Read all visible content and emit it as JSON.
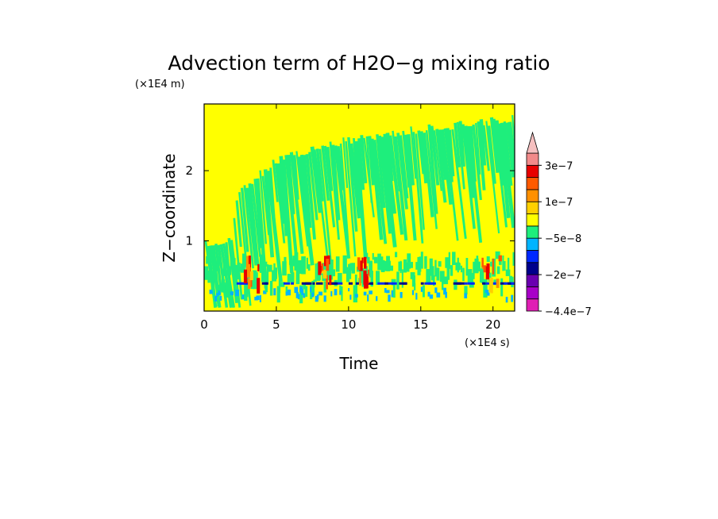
{
  "chart_data": {
    "type": "heatmap",
    "title": "Advection term of H2O−g mixing ratio",
    "xlabel": "Time",
    "ylabel": "Z−coordinate",
    "x_scale_label": "(×1E4 s)",
    "y_scale_label": "(×1E4 m)",
    "xlim": [
      0,
      21.5
    ],
    "ylim": [
      0,
      2.95
    ],
    "x_ticks": [
      0,
      5,
      10,
      15,
      20
    ],
    "x_tick_labels": [
      "0",
      "5",
      "10",
      "15",
      "20"
    ],
    "y_ticks": [
      1,
      2
    ],
    "y_tick_labels": [
      "1",
      "2"
    ],
    "grid": false,
    "colorbar": {
      "position": "right",
      "extend": "max",
      "levels": [
        -4.4e-07,
        -3.5e-07,
        -2.75e-07,
        -2e-07,
        -1.5e-07,
        -1e-07,
        -5e-08,
        0,
        5e-08,
        1e-07,
        1.5e-07,
        2e-07,
        3e-07
      ],
      "colors": [
        "#e01fb4",
        "#a800c8",
        "#6a00b0",
        "#00008c",
        "#0028ff",
        "#00b4ff",
        "#1eee7c",
        "#ffff00",
        "#ffd000",
        "#ff9000",
        "#ff5a00",
        "#e80000",
        "#f28a8a",
        "#f6c0c0"
      ],
      "tick_labels": [
        "3e−7",
        "1e−7",
        "−5e−8",
        "−2e−7",
        "−4.4e−7"
      ]
    },
    "field_summary": {
      "background_value_color": "#ffff00",
      "cloud_region_color": "#1eee7c",
      "cloud_top_profile": [
        {
          "time": 0,
          "z": 1.0
        },
        {
          "time": 1.9,
          "z": 1.1
        },
        {
          "time": 2.3,
          "z": 1.75
        },
        {
          "time": 3.5,
          "z": 1.95
        },
        {
          "time": 5.0,
          "z": 2.2
        },
        {
          "time": 8.0,
          "z": 2.4
        },
        {
          "time": 10.0,
          "z": 2.5
        },
        {
          "time": 15.0,
          "z": 2.65
        },
        {
          "time": 21.5,
          "z": 2.8
        }
      ],
      "strong_positive_times": [
        3.3,
        8.3,
        10.8,
        19.8
      ],
      "negative_band_z": 0.38
    }
  }
}
